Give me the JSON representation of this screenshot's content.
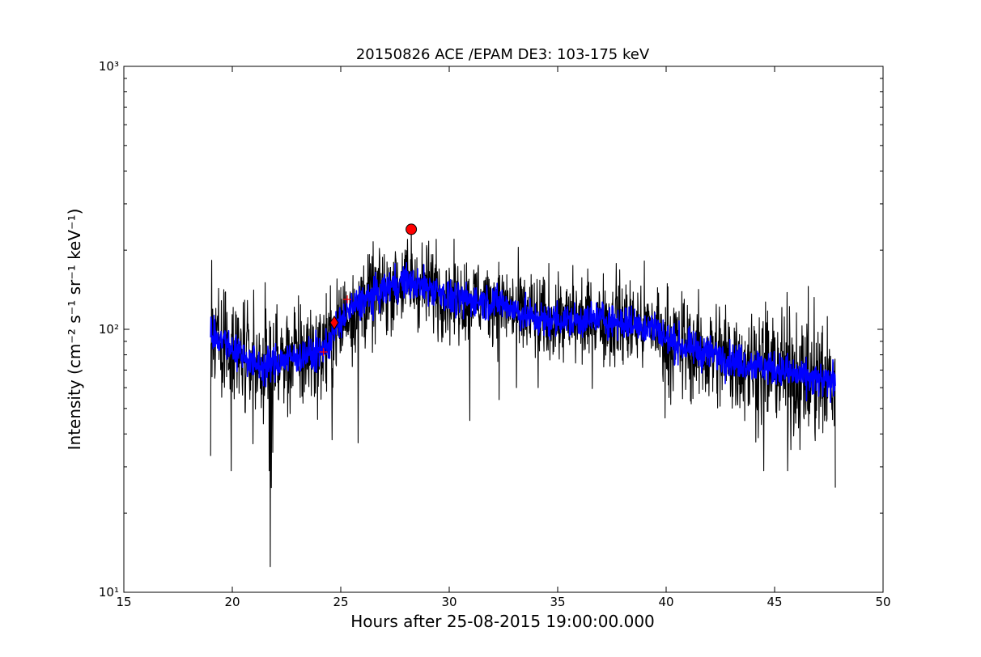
{
  "chart_data": {
    "type": "line",
    "title": "20150826 ACE /EPAM DE3: 103-175 keV",
    "xlabel": "Hours after 25-08-2015 19:00:00.000",
    "ylabel": "Intensity (cm⁻² s⁻¹ sr⁻¹ keV⁻¹)",
    "xlim": [
      15,
      50
    ],
    "ylim": [
      10,
      1000
    ],
    "yscale": "log",
    "grid": false,
    "legend": "none",
    "x_ticks": [
      15,
      20,
      25,
      30,
      35,
      40,
      45,
      50
    ],
    "x_tick_labels": [
      "15",
      "20",
      "25",
      "30",
      "35",
      "40",
      "45",
      "50"
    ],
    "y_ticks": [
      10,
      100,
      1000
    ],
    "y_tick_labels": [
      "10¹",
      "10²",
      "10³"
    ],
    "colors": {
      "raw": "#000000",
      "smoothed": "#0000ff",
      "markers": "#ff0000"
    },
    "series": [
      {
        "kind": "raw",
        "color": "#000000",
        "x": [
          19.0,
          19.5,
          20.0,
          20.5,
          21.0,
          21.5,
          22.0,
          22.5,
          23.0,
          23.5,
          24.0,
          24.5,
          25.0,
          25.5,
          26.0,
          26.5,
          27.0,
          27.5,
          28.0,
          28.5,
          29.0,
          29.5,
          30.0,
          30.5,
          31.0,
          31.5,
          32.0,
          32.5,
          33.0,
          33.5,
          34.0,
          34.5,
          35.0,
          35.5,
          36.0,
          36.5,
          37.0,
          37.5,
          38.0,
          38.5,
          39.0,
          39.5,
          40.0,
          40.5,
          41.0,
          41.5,
          42.0,
          42.5,
          43.0,
          43.5,
          44.0,
          44.5,
          45.0,
          45.5,
          46.0,
          46.5,
          47.0,
          47.5,
          47.8
        ],
        "y": [
          98,
          92,
          85,
          80,
          74,
          72,
          75,
          77,
          79,
          80,
          81,
          90,
          108,
          120,
          128,
          133,
          140,
          150,
          152,
          147,
          145,
          140,
          132,
          128,
          130,
          128,
          127,
          125,
          118,
          113,
          110,
          107,
          110,
          107,
          108,
          109,
          110,
          108,
          106,
          104,
          103,
          102,
          92,
          88,
          85,
          83,
          81,
          79,
          77,
          75,
          74,
          72,
          71,
          69,
          67,
          65,
          64,
          62,
          66
        ],
        "spread": [
          0.3,
          0.28,
          0.3,
          0.32,
          0.3,
          0.3,
          0.33,
          0.3,
          0.3,
          0.28,
          0.27,
          0.25,
          0.28,
          0.26,
          0.25,
          0.24,
          0.23,
          0.22,
          0.22,
          0.22,
          0.22,
          0.22,
          0.22,
          0.21,
          0.21,
          0.21,
          0.21,
          0.22,
          0.22,
          0.23,
          0.23,
          0.23,
          0.23,
          0.23,
          0.23,
          0.23,
          0.23,
          0.24,
          0.24,
          0.24,
          0.24,
          0.25,
          0.26,
          0.27,
          0.27,
          0.28,
          0.28,
          0.29,
          0.3,
          0.3,
          0.31,
          0.31,
          0.32,
          0.33,
          0.33,
          0.34,
          0.35,
          0.35,
          0.35
        ],
        "extremes": [
          [
            19.0,
            33
          ],
          [
            19.05,
            183
          ],
          [
            19.95,
            29
          ],
          [
            21.75,
            12.5
          ],
          [
            21.8,
            25
          ],
          [
            21.7,
            29
          ],
          [
            24.6,
            38
          ],
          [
            25.8,
            37
          ],
          [
            28.25,
            240
          ],
          [
            29.4,
            220
          ],
          [
            30.95,
            45
          ],
          [
            32.3,
            54
          ],
          [
            33.1,
            60
          ],
          [
            34.1,
            60
          ],
          [
            35.7,
            175
          ],
          [
            37.7,
            178
          ],
          [
            39.95,
            46
          ],
          [
            44.5,
            29
          ],
          [
            45.6,
            29
          ],
          [
            47.8,
            25
          ]
        ]
      },
      {
        "kind": "smoothed",
        "color": "#0000ff",
        "x": [
          19.0,
          19.5,
          20.0,
          20.5,
          21.0,
          21.5,
          22.0,
          22.5,
          23.0,
          23.5,
          24.0,
          24.5,
          25.0,
          25.5,
          26.0,
          26.5,
          27.0,
          27.5,
          28.0,
          28.5,
          29.0,
          29.5,
          30.0,
          30.5,
          31.0,
          31.5,
          32.0,
          32.5,
          33.0,
          33.5,
          34.0,
          34.5,
          35.0,
          35.5,
          36.0,
          36.5,
          37.0,
          37.5,
          38.0,
          38.5,
          39.0,
          39.5,
          40.0,
          40.5,
          41.0,
          41.5,
          42.0,
          42.5,
          43.0,
          43.5,
          44.0,
          44.5,
          45.0,
          45.5,
          46.0,
          46.5,
          47.0,
          47.5,
          47.8
        ],
        "y": [
          98,
          92,
          85,
          80,
          74,
          72,
          75,
          77,
          79,
          80,
          81,
          90,
          108,
          120,
          128,
          133,
          140,
          150,
          152,
          147,
          145,
          140,
          132,
          128,
          130,
          128,
          127,
          125,
          118,
          113,
          110,
          107,
          110,
          107,
          108,
          109,
          110,
          108,
          106,
          104,
          103,
          102,
          92,
          88,
          85,
          83,
          81,
          79,
          77,
          75,
          74,
          72,
          71,
          69,
          67,
          65,
          64,
          62,
          66
        ],
        "spread": 0.09
      }
    ],
    "markers": [
      {
        "shape": "circle",
        "x": 28.25,
        "y": 240
      },
      {
        "shape": "diamond",
        "x": 24.7,
        "y": 106
      },
      {
        "shape": "plus",
        "x": 24.2,
        "y": 82
      },
      {
        "shape": "plus",
        "x": 25.3,
        "y": 130
      }
    ]
  }
}
